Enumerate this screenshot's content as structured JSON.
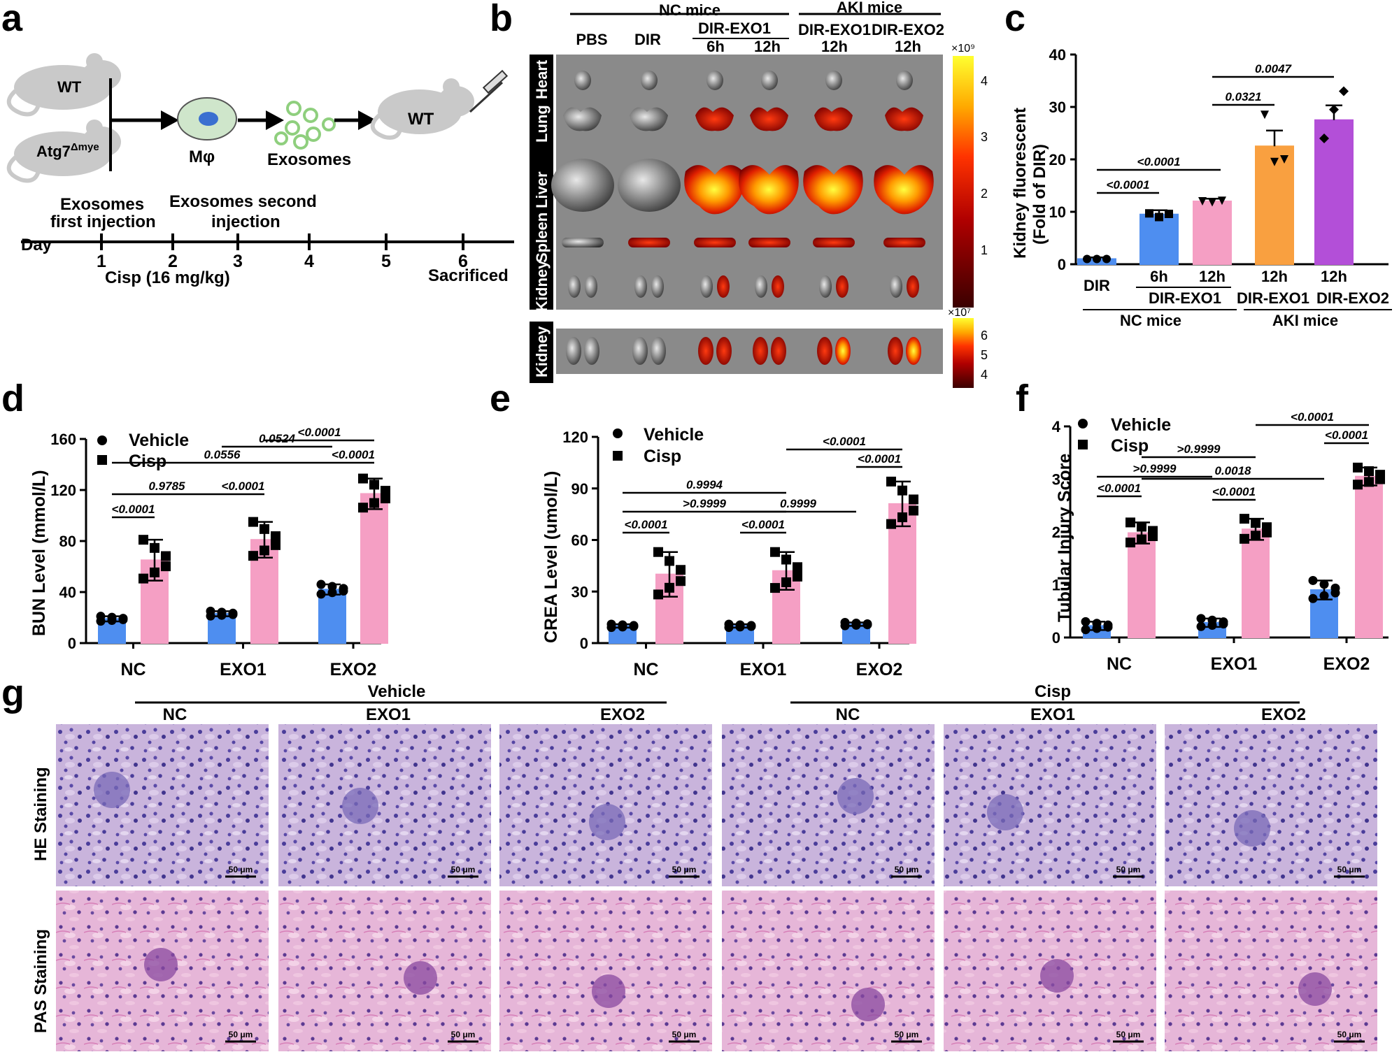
{
  "panel_labels": {
    "a": "a",
    "b": "b",
    "c": "c",
    "d": "d",
    "e": "e",
    "f": "f",
    "g": "g"
  },
  "colors": {
    "blue": "#4e8ef0",
    "pink": "#f59fc4",
    "orange": "#f9a040",
    "purple": "#b34fd8",
    "mouse": "#c9c9c9",
    "cell": "#cfe6cb",
    "exo": "#8fcf7e"
  },
  "panel_a": {
    "wt": "WT",
    "atg7": "Atg7",
    "atg7_sup": "Δmye",
    "mphi": "Mφ",
    "exosomes": "Exosomes",
    "wt2": "WT",
    "first_injection_1": "Exosomes",
    "first_injection_2": "first injection",
    "second_injection_1": "Exosomes second",
    "second_injection_2": "injection",
    "day_label": "Day",
    "days": [
      "1",
      "2",
      "3",
      "4",
      "5",
      "6"
    ],
    "cisp": "Cisp (16 mg/kg)",
    "sacrificed": "Sacrificed"
  },
  "panel_b": {
    "nc_mice": "NC mice",
    "aki_mice": "AKI mice",
    "pbs": "PBS",
    "dir": "DIR",
    "dir_exo1": "DIR-EXO1",
    "h6": "6h",
    "h12": "12h",
    "aki_exo1": "DIR-EXO1",
    "aki_exo1_time": "12h",
    "aki_exo2": "DIR-EXO2",
    "aki_exo2_time": "12h",
    "organs": [
      "Heart",
      "Lung",
      "Liver",
      "Spleen",
      "Kidney"
    ],
    "kidney_row": "Kidney",
    "scale1_exp": "×10⁹",
    "scale1_ticks": [
      "4",
      "3",
      "2",
      "1"
    ],
    "scale2_exp": "×10⁷",
    "scale2_ticks": [
      "6",
      "5",
      "4"
    ]
  },
  "panel_c": {
    "ylabel_1": "Kidney fluorescent",
    "ylabel_2": "(Fold of DIR)",
    "yticks": [
      "0",
      "10",
      "20",
      "30",
      "40"
    ],
    "cat_dir": "DIR",
    "cat_6h": "6h",
    "cat_12h": "12h",
    "cat_aki12a": "12h",
    "cat_aki12b": "12h",
    "grp_dir_exo1": "DIR-EXO1",
    "grp_aki_exo1": "DIR-EXO1",
    "grp_aki_exo2": "DIR-EXO2",
    "grp_nc": "NC mice",
    "grp_aki": "AKI mice",
    "p1": "<0.0001",
    "p2": "<0.0001",
    "p3": "0.0321",
    "p4": "0.0047"
  },
  "panel_d": {
    "ylabel": "BUN Level (mmol/L)",
    "yticks": [
      "0",
      "40",
      "80",
      "120",
      "160"
    ],
    "cats": [
      "NC",
      "EXO1",
      "EXO2"
    ],
    "legend_vehicle": "Vehicle",
    "legend_cisp": "Cisp",
    "p": [
      "<0.0001",
      "<0.0001",
      "<0.0001",
      "0.9785",
      "0.0556",
      "0.0524",
      "<0.0001"
    ]
  },
  "panel_e": {
    "ylabel": "CREA Level (umol/L)",
    "yticks": [
      "0",
      "30",
      "60",
      "90",
      "120"
    ],
    "cats": [
      "NC",
      "EXO1",
      "EXO2"
    ],
    "legend_vehicle": "Vehicle",
    "legend_cisp": "Cisp",
    "p": [
      "<0.0001",
      "<0.0001",
      "<0.0001",
      ">0.9999",
      "0.9994",
      "0.9999",
      "<0.0001"
    ]
  },
  "panel_f": {
    "ylabel": "Tubular Injury Score",
    "yticks": [
      "0",
      "1",
      "2",
      "3",
      "4"
    ],
    "cats": [
      "NC",
      "EXO1",
      "EXO2"
    ],
    "legend_vehicle": "Vehicle",
    "legend_cisp": "Cisp",
    "p": [
      "<0.0001",
      "<0.0001",
      "<0.0001",
      ">0.9999",
      ">0.9999",
      "0.0018",
      "<0.0001"
    ]
  },
  "panel_g": {
    "vehicle": "Vehicle",
    "cisp": "Cisp",
    "cols": [
      "NC",
      "EXO1",
      "EXO2",
      "NC",
      "EXO1",
      "EXO2"
    ],
    "row_he": "HE Staining",
    "row_pas": "PAS Staining",
    "scale": "50 μm"
  },
  "chart_data": [
    {
      "type": "bar",
      "panel": "c",
      "categories": [
        "DIR",
        "DIR-EXO1 6h",
        "DIR-EXO1 12h",
        "AKI DIR-EXO1 12h",
        "AKI DIR-EXO2 12h"
      ],
      "values": [
        1,
        9.5,
        12,
        22.5,
        27.5
      ],
      "errors": [
        0.3,
        0.8,
        0.5,
        3,
        2.8
      ],
      "ylim": [
        0,
        40
      ],
      "points": [
        [
          1,
          1,
          1
        ],
        [
          9.7,
          9,
          9.6
        ],
        [
          12,
          11.8,
          12.1
        ],
        [
          28.5,
          19.5,
          20
        ],
        [
          24,
          29.5,
          33
        ]
      ]
    },
    {
      "type": "bar",
      "panel": "d",
      "categories": [
        "NC",
        "EXO1",
        "EXO2"
      ],
      "ylim": [
        0,
        160
      ],
      "series": [
        {
          "name": "Vehicle",
          "values": [
            19,
            23,
            42
          ],
          "errors": [
            2,
            2,
            4
          ]
        },
        {
          "name": "Cisp",
          "values": [
            65,
            81,
            117
          ],
          "errors": [
            16,
            14,
            12
          ]
        }
      ]
    },
    {
      "type": "bar",
      "panel": "e",
      "categories": [
        "NC",
        "EXO1",
        "EXO2"
      ],
      "ylim": [
        0,
        120
      ],
      "series": [
        {
          "name": "Vehicle",
          "values": [
            10,
            10,
            11
          ],
          "errors": [
            1,
            1,
            1
          ]
        },
        {
          "name": "Cisp",
          "values": [
            40,
            42,
            81
          ],
          "errors": [
            13,
            11,
            13
          ]
        }
      ]
    },
    {
      "type": "bar",
      "panel": "f",
      "categories": [
        "NC",
        "EXO1",
        "EXO2"
      ],
      "ylim": [
        0,
        4
      ],
      "series": [
        {
          "name": "Vehicle",
          "values": [
            0.22,
            0.28,
            0.9
          ],
          "errors": [
            0.08,
            0.08,
            0.18
          ]
        },
        {
          "name": "Cisp",
          "values": [
            1.98,
            2.05,
            3.05
          ],
          "errors": [
            0.2,
            0.2,
            0.17
          ]
        }
      ]
    }
  ]
}
